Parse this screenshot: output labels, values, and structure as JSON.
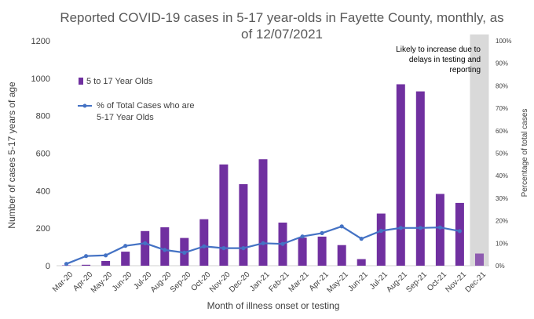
{
  "chart_data": {
    "type": "bar",
    "title_line1": "Reported COVID-19 cases in 5-17 year-olds in Fayette County, monthly, as",
    "title_line2": "of 12/07/2021",
    "xlabel": "Month of illness onset or testing",
    "ylabel_left": "Number of cases 5-17 years of age",
    "ylabel_right": "Percentage of total cases",
    "ylim_left": [
      0,
      1200
    ],
    "ylim_right": [
      0,
      100
    ],
    "yticks_left": [
      "0",
      "200",
      "400",
      "600",
      "800",
      "1000",
      "1200"
    ],
    "yticks_right": [
      "0%",
      "10%",
      "20%",
      "30%",
      "40%",
      "50%",
      "60%",
      "70%",
      "80%",
      "90%",
      "100%"
    ],
    "categories": [
      "Mar-20",
      "Apr-20",
      "May-20",
      "Jun-20",
      "Jul-20",
      "Aug-20",
      "Sep-20",
      "Oct-20",
      "Nov-20",
      "Dec-20",
      "Jan-21",
      "Feb-21",
      "Mar-21",
      "Apr-21",
      "May-21",
      "Jun-21",
      "Jul-21",
      "Aug-21",
      "Sep-21",
      "Oct-21",
      "Nov-21",
      "Dec-21"
    ],
    "series": [
      {
        "name": "5 to 17 Year Olds",
        "type": "bar",
        "axis": "left",
        "color": "#7030a0",
        "values": [
          2,
          5,
          25,
          75,
          185,
          205,
          148,
          248,
          540,
          435,
          568,
          230,
          150,
          155,
          110,
          35,
          278,
          968,
          930,
          383,
          335,
          65
        ]
      },
      {
        "name_line1": "% of Total Cases who are",
        "name_line2": "5-17 Year Olds",
        "type": "line",
        "axis": "right",
        "color": "#4472c4",
        "values": [
          0.8,
          4.3,
          4.6,
          8.8,
          10.0,
          7.0,
          5.8,
          8.6,
          7.8,
          7.8,
          10.0,
          9.7,
          13.0,
          14.5,
          17.5,
          12.0,
          15.5,
          16.8,
          16.8,
          17.0,
          15.4,
          null
        ]
      }
    ],
    "highlight": {
      "category": "Dec-21",
      "color": "#d9d9d9",
      "bar_color": "#8e5bb0",
      "annotation_lines": [
        "Likely to increase due to",
        "delays in testing and",
        "reporting"
      ]
    },
    "legend_placement": "top-left",
    "grid": false
  }
}
